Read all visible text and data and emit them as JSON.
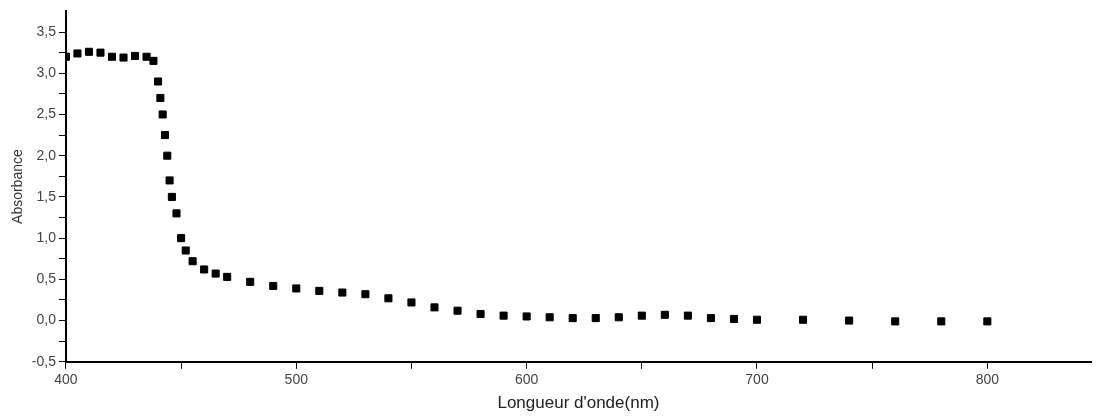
{
  "chart_data": {
    "type": "scatter",
    "xlabel": "Longueur d'onde(nm)",
    "ylabel": "Absorbance",
    "marker": "square",
    "grid": false,
    "legend": false,
    "xlim": [
      400,
      845
    ],
    "ylim": [
      -0.5,
      3.75
    ],
    "xticks": [
      400,
      {
        "value": 450,
        "label": null
      },
      500,
      {
        "value": 550,
        "label": null
      },
      600,
      {
        "value": 650,
        "label": null
      },
      700,
      {
        "value": 750,
        "label": null
      },
      800
    ],
    "yticks": [
      {
        "value": -0.5,
        "label": "-0,5"
      },
      {
        "value": -0.25,
        "label": null
      },
      {
        "value": 0,
        "label": "0,0"
      },
      {
        "value": 0.25,
        "label": null
      },
      {
        "value": 0.5,
        "label": "0,5"
      },
      {
        "value": 0.75,
        "label": null
      },
      {
        "value": 1,
        "label": "1,0"
      },
      {
        "value": 1.25,
        "label": null
      },
      {
        "value": 1.5,
        "label": "1,5"
      },
      {
        "value": 1.75,
        "label": null
      },
      {
        "value": 2,
        "label": "2,0"
      },
      {
        "value": 2.25,
        "label": null
      },
      {
        "value": 2.5,
        "label": "2,5"
      },
      {
        "value": 2.75,
        "label": null
      },
      {
        "value": 3,
        "label": "3,0"
      },
      {
        "value": 3.25,
        "label": null
      },
      {
        "value": 3.5,
        "label": "3,5"
      }
    ],
    "series": [
      {
        "color": "#000000",
        "x": [
          400,
          405,
          410,
          415,
          420,
          425,
          430,
          435,
          438,
          440,
          441,
          442,
          443,
          444,
          445,
          446,
          448,
          450,
          452,
          455,
          460,
          465,
          470,
          480,
          490,
          500,
          510,
          520,
          530,
          540,
          550,
          560,
          570,
          580,
          590,
          600,
          610,
          620,
          630,
          640,
          650,
          660,
          670,
          680,
          690,
          700,
          720,
          740,
          760,
          780,
          800
        ],
        "values": [
          3.2,
          3.24,
          3.26,
          3.25,
          3.2,
          3.19,
          3.21,
          3.2,
          3.15,
          2.9,
          2.7,
          2.5,
          2.25,
          2.0,
          1.7,
          1.5,
          1.3,
          1.0,
          0.85,
          0.72,
          0.62,
          0.57,
          0.53,
          0.47,
          0.42,
          0.39,
          0.36,
          0.34,
          0.32,
          0.27,
          0.22,
          0.16,
          0.12,
          0.08,
          0.06,
          0.05,
          0.04,
          0.03,
          0.03,
          0.04,
          0.06,
          0.07,
          0.06,
          0.03,
          0.02,
          0.01,
          0.01,
          0.0,
          -0.01,
          -0.01,
          -0.01
        ]
      }
    ]
  }
}
